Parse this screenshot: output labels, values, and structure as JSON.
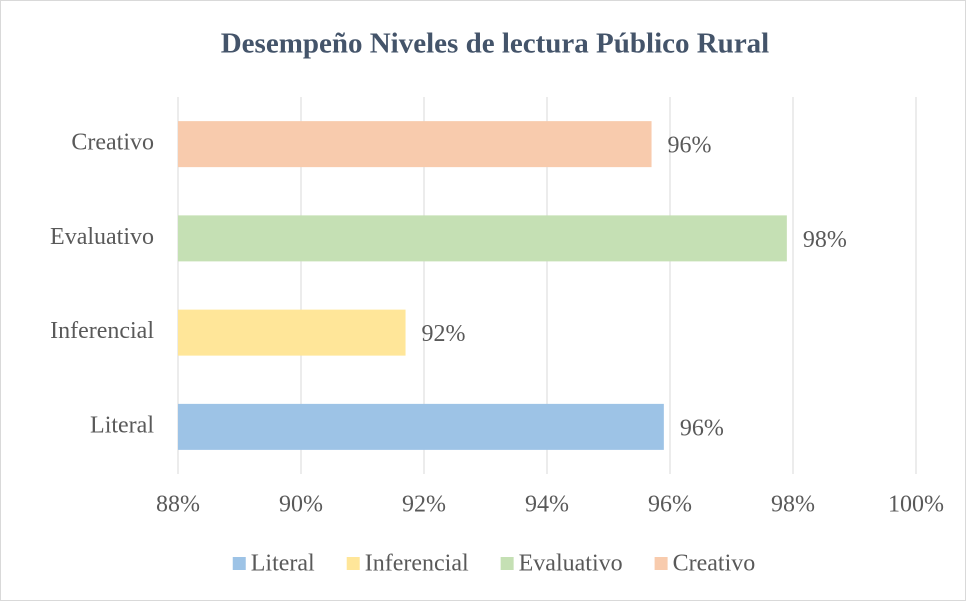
{
  "chart_data": {
    "type": "bar",
    "orientation": "horizontal",
    "title": "Desempeño Niveles de lectura Público Rural",
    "categories": [
      "Literal",
      "Inferencial",
      "Evaluativo",
      "Creativo"
    ],
    "values": [
      95.9,
      91.7,
      97.9,
      95.7
    ],
    "value_labels": [
      "96%",
      "92%",
      "98%",
      "96%"
    ],
    "colors": [
      "#9dc3e6",
      "#ffe699",
      "#c5e0b4",
      "#f8cbad"
    ],
    "xlim": [
      88,
      100
    ],
    "xticks": [
      {
        "value": 88,
        "label": "88%"
      },
      {
        "value": 90,
        "label": "90%"
      },
      {
        "value": 92,
        "label": "92%"
      },
      {
        "value": 94,
        "label": "94%"
      },
      {
        "value": 96,
        "label": "96%"
      },
      {
        "value": 98,
        "label": "98%"
      },
      {
        "value": 100,
        "label": "100%"
      }
    ],
    "grid": true,
    "legend": "bottom"
  }
}
